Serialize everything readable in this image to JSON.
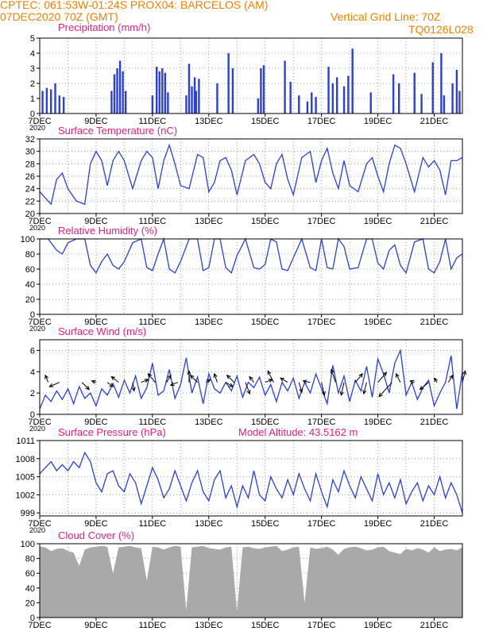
{
  "header": {
    "line1": "CPTEC:   061:53W-01:24S   PROX04: BARCELOS (AM)",
    "line2": "07DEC2020 70Z (GMT)",
    "grid_note": "Vertical Grid Line: 70Z",
    "code": "TQ0126L028"
  },
  "colors": {
    "header": "#f08000",
    "title": "#e0207f",
    "series": "#2a3fe0",
    "cloud": "#a9a9a9",
    "grid": "#8a8a8a"
  },
  "x_axis": {
    "start": "07DEC2020",
    "end": "22DEC2020",
    "date_labels": [
      "7DEC",
      "9DEC",
      "11DEC",
      "13DEC",
      "15DEC",
      "17DEC",
      "19DEC",
      "21DEC"
    ],
    "date_label_days": [
      7,
      9,
      11,
      13,
      15,
      17,
      19,
      21
    ],
    "cut_label": "2020"
  },
  "chart_data": [
    {
      "type": "bar",
      "title": "Precipitation (mm/h)",
      "ylim": [
        0,
        5
      ],
      "yticks": [
        "0",
        "1",
        "2",
        "3",
        "4",
        "5"
      ],
      "x_days": [
        7.1,
        7.25,
        7.4,
        7.55,
        7.7,
        7.85,
        9.55,
        9.65,
        9.75,
        9.85,
        9.95,
        10.05,
        11.0,
        11.15,
        11.25,
        11.35,
        11.45,
        11.55,
        12.2,
        12.3,
        12.4,
        12.5,
        12.55,
        12.65,
        13.3,
        13.7,
        13.85,
        14.75,
        14.85,
        14.95,
        15.7,
        15.9,
        16.2,
        16.5,
        16.65,
        16.8,
        17.25,
        17.4,
        17.55,
        17.8,
        17.95,
        18.1,
        18.75,
        19.55,
        19.75,
        20.3,
        20.55,
        20.95,
        21.25,
        21.35,
        21.65,
        21.8,
        21.9
      ],
      "values": [
        1.5,
        1.7,
        1.6,
        2.0,
        1.2,
        1.1,
        1.5,
        2.6,
        3.0,
        3.5,
        2.8,
        1.5,
        1.2,
        3.1,
        2.8,
        3.0,
        2.7,
        1.4,
        1.2,
        3.3,
        1.8,
        2.4,
        1.5,
        2.3,
        2.0,
        4.0,
        3.0,
        1.0,
        3.0,
        3.2,
        3.5,
        2.1,
        1.2,
        0.8,
        1.4,
        1.1,
        3.1,
        2.0,
        2.4,
        1.8,
        2.5,
        4.3,
        1.4,
        2.6,
        2.0,
        2.7,
        1.3,
        3.4,
        4.0,
        1.2,
        2.0,
        2.9,
        1.5
      ]
    },
    {
      "type": "line",
      "title": "Surface Temperature (nC)",
      "ylim": [
        20,
        32
      ],
      "yticks": [
        "20",
        "22",
        "24",
        "26",
        "28",
        "30",
        "32"
      ],
      "x_days": [
        7.0,
        7.2,
        7.4,
        7.6,
        7.8,
        8.0,
        8.3,
        8.6,
        8.8,
        9.0,
        9.2,
        9.4,
        9.6,
        9.8,
        10.0,
        10.3,
        10.6,
        10.8,
        11.0,
        11.2,
        11.4,
        11.6,
        11.8,
        12.0,
        12.3,
        12.6,
        12.8,
        13.0,
        13.2,
        13.4,
        13.6,
        13.8,
        14.0,
        14.3,
        14.6,
        14.8,
        15.0,
        15.2,
        15.4,
        15.6,
        15.8,
        16.0,
        16.3,
        16.6,
        16.8,
        17.0,
        17.2,
        17.4,
        17.6,
        17.8,
        18.0,
        18.3,
        18.6,
        18.8,
        19.0,
        19.2,
        19.4,
        19.6,
        19.8,
        20.0,
        20.3,
        20.6,
        20.8,
        21.0,
        21.2,
        21.4,
        21.6,
        21.8,
        22.0
      ],
      "values": [
        23.5,
        22.5,
        21.5,
        25.5,
        26.5,
        24.0,
        22.0,
        21.5,
        28.0,
        30.0,
        28.5,
        24.5,
        28.5,
        30.0,
        28.5,
        24.0,
        28.5,
        30.0,
        29.0,
        24.0,
        28.5,
        31.0,
        28.0,
        24.5,
        24.0,
        29.5,
        29.0,
        23.5,
        25.0,
        28.5,
        29.0,
        27.0,
        23.0,
        28.5,
        29.5,
        28.0,
        25.0,
        24.0,
        28.0,
        29.5,
        25.5,
        23.0,
        29.0,
        30.0,
        25.0,
        28.5,
        30.5,
        26.5,
        24.0,
        28.5,
        24.5,
        23.5,
        28.0,
        29.0,
        26.0,
        23.5,
        28.0,
        31.0,
        30.5,
        28.0,
        23.5,
        29.0,
        27.5,
        28.5,
        27.0,
        23.0,
        28.5,
        28.5,
        29.0
      ]
    },
    {
      "type": "line",
      "title": "Relative Humidity (%)",
      "ylim": [
        0,
        100
      ],
      "yticks": [
        "0",
        "20",
        "40",
        "60",
        "80",
        "100"
      ],
      "x_days": [
        7.0,
        7.3,
        7.6,
        7.8,
        8.0,
        8.3,
        8.6,
        8.8,
        9.0,
        9.2,
        9.4,
        9.6,
        9.8,
        10.0,
        10.3,
        10.6,
        10.8,
        11.0,
        11.2,
        11.4,
        11.6,
        11.8,
        12.0,
        12.3,
        12.6,
        12.8,
        13.0,
        13.2,
        13.4,
        13.6,
        13.8,
        14.0,
        14.3,
        14.6,
        14.8,
        15.0,
        15.2,
        15.4,
        15.6,
        15.8,
        16.0,
        16.3,
        16.6,
        16.8,
        17.0,
        17.2,
        17.4,
        17.6,
        17.8,
        18.0,
        18.3,
        18.6,
        18.8,
        19.0,
        19.2,
        19.4,
        19.6,
        19.8,
        20.0,
        20.3,
        20.6,
        20.8,
        21.0,
        21.2,
        21.4,
        21.6,
        21.8,
        22.0
      ],
      "values": [
        100,
        100,
        85,
        80,
        95,
        100,
        100,
        65,
        55,
        70,
        80,
        65,
        60,
        70,
        95,
        100,
        62,
        58,
        80,
        100,
        60,
        55,
        70,
        100,
        100,
        58,
        62,
        100,
        100,
        62,
        55,
        78,
        100,
        62,
        60,
        66,
        100,
        96,
        60,
        58,
        75,
        100,
        62,
        58,
        100,
        62,
        60,
        100,
        90,
        60,
        62,
        100,
        100,
        68,
        60,
        85,
        92,
        65,
        55,
        96,
        100,
        60,
        55,
        70,
        100,
        60,
        75,
        80
      ]
    },
    {
      "type": "line",
      "title": "Surface Wind (m/s)",
      "ylim": [
        0,
        7
      ],
      "yticks": [
        "0",
        "2",
        "4",
        "6"
      ],
      "x_days": [
        7.0,
        7.2,
        7.4,
        7.6,
        7.8,
        8.0,
        8.2,
        8.4,
        8.6,
        8.8,
        9.0,
        9.2,
        9.4,
        9.6,
        9.8,
        10.0,
        10.2,
        10.4,
        10.6,
        10.8,
        11.0,
        11.2,
        11.4,
        11.6,
        11.8,
        12.0,
        12.2,
        12.4,
        12.6,
        12.8,
        13.0,
        13.2,
        13.4,
        13.6,
        13.8,
        14.0,
        14.2,
        14.4,
        14.6,
        14.8,
        15.0,
        15.2,
        15.4,
        15.6,
        15.8,
        16.0,
        16.2,
        16.4,
        16.6,
        16.8,
        17.0,
        17.2,
        17.4,
        17.6,
        17.8,
        18.0,
        18.2,
        18.4,
        18.6,
        18.8,
        19.0,
        19.2,
        19.4,
        19.6,
        19.8,
        20.0,
        20.2,
        20.4,
        20.6,
        20.8,
        21.0,
        21.2,
        21.4,
        21.6,
        21.8,
        22.0
      ],
      "values": [
        0.5,
        1.8,
        1.2,
        2.2,
        1.4,
        2.4,
        1.0,
        2.6,
        1.5,
        2.0,
        0.8,
        2.4,
        1.8,
        2.9,
        1.6,
        3.2,
        2.0,
        3.6,
        1.5,
        2.5,
        4.8,
        1.8,
        2.2,
        4.2,
        1.5,
        2.8,
        5.3,
        2.0,
        3.5,
        1.0,
        3.8,
        2.4,
        2.0,
        3.0,
        2.2,
        3.6,
        1.6,
        3.0,
        2.5,
        3.5,
        1.8,
        2.8,
        1.2,
        3.0,
        2.2,
        3.4,
        1.5,
        3.0,
        2.0,
        3.8,
        2.4,
        1.0,
        4.6,
        2.0,
        3.6,
        1.2,
        3.2,
        2.2,
        4.5,
        1.6,
        5.2,
        3.8,
        2.0,
        4.8,
        6.0,
        1.8,
        3.0,
        1.4,
        2.5,
        3.2,
        0.8,
        2.0,
        3.0,
        5.5,
        0.5,
        4.0
      ],
      "arrows_x": [
        7.3,
        7.7,
        8.5,
        9.0,
        9.4,
        9.8,
        10.3,
        10.6,
        11.1,
        11.5,
        11.9,
        12.3,
        12.6,
        12.9,
        13.3,
        13.6,
        13.9,
        14.3,
        14.6,
        15.0,
        15.3,
        15.8,
        16.2,
        16.6,
        17.0,
        17.5,
        17.8,
        18.2,
        18.6,
        19.0,
        19.5,
        19.8,
        20.3,
        20.8,
        21.1,
        21.5,
        22.0
      ],
      "arrows_u": [
        -0.2,
        -0.7,
        0.5,
        -0.3,
        0.4,
        -0.5,
        0.1,
        0.5,
        -0.5,
        0.3,
        -0.5,
        0.0,
        -0.5,
        0.3,
        -0.2,
        0.5,
        -0.5,
        0.3,
        -0.3,
        0.5,
        -0.4,
        -0.5,
        0.2,
        -0.5,
        0.2,
        -0.3,
        -0.2,
        0.5,
        -0.2,
        0.6,
        -0.9,
        -0.3,
        -0.3,
        -0.6,
        -0.2,
        0.3,
        0.2
      ],
      "arrows_v": [
        0.5,
        -0.3,
        -0.5,
        0.1,
        -0.3,
        0.4,
        -0.6,
        0.2,
        0.6,
        0.5,
        -0.2,
        0.8,
        0.5,
        0.2,
        0.6,
        -0.3,
        0.5,
        -0.8,
        0.4,
        0.2,
        0.8,
        0.3,
        -0.7,
        0.1,
        -0.9,
        0.9,
        -0.9,
        0.6,
        -0.8,
        0.7,
        -1.0,
        0.6,
        0.1,
        -0.5,
        0.3,
        0.5,
        0.8
      ]
    },
    {
      "type": "line",
      "title": "Surface Pressure (hPa)",
      "annotation": "Model Altitude: 43.5162 m",
      "ylim": [
        998.5,
        1011
      ],
      "yticks": [
        "999",
        "1002",
        "1005",
        "1008",
        "1011"
      ],
      "x_days": [
        7.0,
        7.2,
        7.4,
        7.6,
        7.8,
        8.0,
        8.2,
        8.4,
        8.6,
        8.8,
        9.0,
        9.2,
        9.4,
        9.6,
        9.8,
        10.0,
        10.2,
        10.4,
        10.6,
        10.8,
        11.0,
        11.2,
        11.4,
        11.6,
        11.8,
        12.0,
        12.2,
        12.4,
        12.6,
        12.8,
        13.0,
        13.2,
        13.4,
        13.6,
        13.8,
        14.0,
        14.2,
        14.4,
        14.6,
        14.8,
        15.0,
        15.2,
        15.4,
        15.6,
        15.8,
        16.0,
        16.2,
        16.4,
        16.6,
        16.8,
        17.0,
        17.2,
        17.4,
        17.6,
        17.8,
        18.0,
        18.2,
        18.4,
        18.6,
        18.8,
        19.0,
        19.2,
        19.4,
        19.6,
        19.8,
        20.0,
        20.2,
        20.4,
        20.6,
        20.8,
        21.0,
        21.2,
        21.4,
        21.6,
        21.8,
        22.0
      ],
      "values": [
        1005.5,
        1006.5,
        1007.5,
        1006.0,
        1007.0,
        1006.0,
        1007.5,
        1006.5,
        1009.0,
        1007.5,
        1004.0,
        1002.5,
        1005.5,
        1006.0,
        1003.5,
        1002.5,
        1005.5,
        1004.0,
        1000.5,
        1003.5,
        1006.5,
        1004.5,
        1001.5,
        1003.0,
        1006.0,
        1003.5,
        1001.0,
        1004.0,
        1006.0,
        1002.5,
        1001.0,
        1004.5,
        1006.0,
        1001.5,
        1003.5,
        1000.0,
        1003.5,
        1001.5,
        1006.0,
        1002.0,
        1001.0,
        1005.0,
        1003.0,
        1001.5,
        1004.5,
        1002.0,
        1005.5,
        1003.0,
        1001.0,
        1005.5,
        1002.5,
        1000.0,
        1004.5,
        1002.5,
        1006.0,
        1003.5,
        1001.5,
        1005.0,
        1003.0,
        1001.0,
        1005.5,
        1002.0,
        1004.0,
        1001.5,
        1004.5,
        1000.5,
        1002.5,
        1004.0,
        1001.0,
        1003.5,
        1002.0,
        1005.0,
        1001.5,
        1004.0,
        1002.0,
        999.0
      ]
    },
    {
      "type": "area",
      "title": "Cloud Cover (%)",
      "ylim": [
        0,
        100
      ],
      "yticks": [
        "0",
        "20",
        "40",
        "60",
        "80",
        "100"
      ],
      "x_days": [
        7.0,
        7.2,
        7.4,
        7.6,
        7.8,
        8.0,
        8.2,
        8.4,
        8.6,
        8.8,
        9.0,
        9.2,
        9.4,
        9.6,
        9.8,
        10.0,
        10.2,
        10.4,
        10.6,
        10.8,
        11.0,
        11.2,
        11.4,
        11.6,
        11.8,
        12.0,
        12.2,
        12.4,
        12.6,
        12.8,
        13.0,
        13.2,
        13.4,
        13.6,
        13.8,
        14.0,
        14.2,
        14.4,
        14.6,
        14.8,
        15.0,
        15.2,
        15.4,
        15.6,
        15.8,
        16.0,
        16.2,
        16.4,
        16.6,
        16.8,
        17.0,
        17.2,
        17.4,
        17.6,
        17.8,
        18.0,
        18.2,
        18.4,
        18.6,
        18.8,
        19.0,
        19.2,
        19.4,
        19.6,
        19.8,
        20.0,
        20.2,
        20.4,
        20.6,
        20.8,
        21.0,
        21.2,
        21.4,
        21.6,
        21.8,
        22.0
      ],
      "values": [
        96,
        95,
        90,
        93,
        94,
        90,
        88,
        70,
        92,
        95,
        96,
        97,
        96,
        60,
        95,
        96,
        97,
        95,
        94,
        50,
        96,
        95,
        92,
        95,
        97,
        96,
        10,
        95,
        96,
        97,
        94,
        93,
        92,
        95,
        96,
        8,
        95,
        96,
        94,
        93,
        95,
        96,
        97,
        90,
        92,
        95,
        96,
        20,
        95,
        93,
        94,
        96,
        92,
        85,
        93,
        95,
        96,
        94,
        91,
        92,
        95,
        96,
        90,
        88,
        86,
        93,
        91,
        94,
        92,
        88,
        95,
        90,
        92,
        93,
        91,
        95
      ]
    }
  ]
}
